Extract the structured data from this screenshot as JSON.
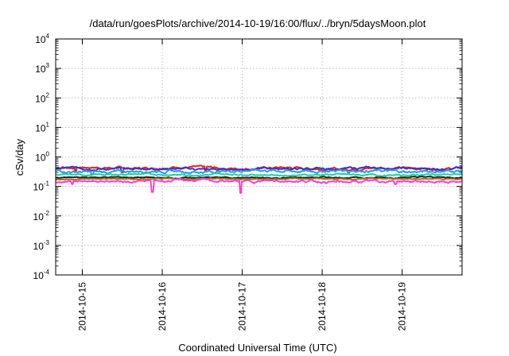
{
  "chart_data": {
    "type": "line",
    "title": "/data/run/goesPlots/archive/2014-10-19/16:00/flux/../bryn/5daysMoon.plot",
    "xlabel": "Coordinated Universal Time (UTC)",
    "ylabel": "cSv/day",
    "yscale": "log",
    "ylim": [
      0.0001,
      10000
    ],
    "y_ticks": [
      {
        "base": "10",
        "exp": "-4",
        "value": 0.0001
      },
      {
        "base": "10",
        "exp": "-3",
        "value": 0.001
      },
      {
        "base": "10",
        "exp": "-2",
        "value": 0.01
      },
      {
        "base": "10",
        "exp": "-1",
        "value": 0.1
      },
      {
        "base": "10",
        "exp": "0",
        "value": 1
      },
      {
        "base": "10",
        "exp": "1",
        "value": 10
      },
      {
        "base": "10",
        "exp": "2",
        "value": 100
      },
      {
        "base": "10",
        "exp": "3",
        "value": 1000
      },
      {
        "base": "10",
        "exp": "4",
        "value": 10000
      }
    ],
    "xlim": [
      "2014-10-14 16:00",
      "2014-10-19 18:00"
    ],
    "x_ticks": [
      {
        "label": "2014-10-15",
        "value": "2014-10-15 00:00"
      },
      {
        "label": "2014-10-16",
        "value": "2014-10-16 00:00"
      },
      {
        "label": "2014-10-17",
        "value": "2014-10-17 00:00"
      },
      {
        "label": "2014-10-18",
        "value": "2014-10-18 00:00"
      },
      {
        "label": "2014-10-19",
        "value": "2014-10-19 00:00"
      }
    ],
    "grid": true,
    "series": [
      {
        "color": "#e8211d",
        "level": 0.42,
        "variability": 0.12,
        "dips": [
          [
            "2014-10-14 22:00",
            0.32
          ],
          [
            "2014-10-16 13:00",
            0.33
          ]
        ]
      },
      {
        "color": "#3d2fd4",
        "level": 0.4,
        "variability": 0.11,
        "dips": [
          [
            "2014-10-15 12:00",
            0.3
          ]
        ]
      },
      {
        "color": "#1f9fe8",
        "level": 0.33,
        "variability": 0.14,
        "dips": [
          [
            "2014-10-15 03:00",
            0.26
          ],
          [
            "2014-10-18 08:00",
            0.27
          ]
        ]
      },
      {
        "color": "#1fcfa0",
        "level": 0.25,
        "variability": 0.08,
        "dips": []
      },
      {
        "color": "#222222",
        "level": 0.2,
        "variability": 0.06,
        "dips": []
      },
      {
        "color": "#b46a14",
        "level": 0.18,
        "variability": 0.05,
        "dips": []
      },
      {
        "color": "#ff3ddc",
        "level": 0.15,
        "variability": 0.12,
        "dips": [
          [
            "2014-10-14 21:00",
            0.12
          ],
          [
            "2014-10-15 21:00",
            0.065
          ],
          [
            "2014-10-16 23:30",
            0.06
          ],
          [
            "2014-10-18 22:00",
            0.12
          ]
        ]
      }
    ]
  }
}
